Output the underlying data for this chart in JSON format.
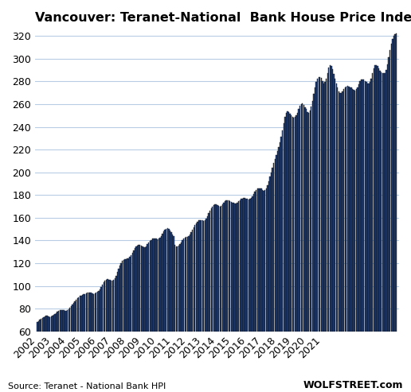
{
  "title": "Vancouver: Teranet-National  Bank House Price Index",
  "source_left": "Source: Teranet - National Bank HPI",
  "source_right": "WOLFSTREET.com",
  "ylim": [
    60,
    325
  ],
  "yticks": [
    60,
    80,
    100,
    120,
    140,
    160,
    180,
    200,
    220,
    240,
    260,
    280,
    300,
    320
  ],
  "bar_color": "#1f4080",
  "bar_edge_color": "#111111",
  "background_color": "#ffffff",
  "grid_color": "#b8cce4",
  "values": [
    68.5,
    69.2,
    70.1,
    71.0,
    71.8,
    72.5,
    73.0,
    73.5,
    73.8,
    73.0,
    72.5,
    72.8,
    73.5,
    74.2,
    75.0,
    76.0,
    77.0,
    78.0,
    78.5,
    78.8,
    79.0,
    78.5,
    78.0,
    78.2,
    78.8,
    79.5,
    80.5,
    82.0,
    83.5,
    85.0,
    86.5,
    87.8,
    89.0,
    90.0,
    91.0,
    91.5,
    92.0,
    92.5,
    93.0,
    93.5,
    93.8,
    94.0,
    94.2,
    94.0,
    93.5,
    93.0,
    93.2,
    93.8,
    94.5,
    95.5,
    97.0,
    99.0,
    101.0,
    103.0,
    104.5,
    105.5,
    106.0,
    105.5,
    105.0,
    104.5,
    104.8,
    105.5,
    107.0,
    109.0,
    112.0,
    115.0,
    118.0,
    120.0,
    122.0,
    123.0,
    123.5,
    123.8,
    124.0,
    124.5,
    125.5,
    127.0,
    129.0,
    131.0,
    133.0,
    134.5,
    135.5,
    136.0,
    136.0,
    135.5,
    134.8,
    134.0,
    134.0,
    135.0,
    136.5,
    138.0,
    139.5,
    140.5,
    141.5,
    142.0,
    142.0,
    141.5,
    141.0,
    141.5,
    142.5,
    144.0,
    146.0,
    148.0,
    149.5,
    150.0,
    150.5,
    150.0,
    149.0,
    147.5,
    145.5,
    143.5,
    136.0,
    134.5,
    135.0,
    135.5,
    137.0,
    138.5,
    140.0,
    141.5,
    142.5,
    143.0,
    143.0,
    143.5,
    145.0,
    147.0,
    149.5,
    151.5,
    153.5,
    155.0,
    156.5,
    157.5,
    158.0,
    158.0,
    157.5,
    157.0,
    157.5,
    159.0,
    161.5,
    164.0,
    166.5,
    168.5,
    170.0,
    171.0,
    171.5,
    171.5,
    171.0,
    170.5,
    170.0,
    170.5,
    171.5,
    173.0,
    174.5,
    175.5,
    175.5,
    175.0,
    174.5,
    174.0,
    173.5,
    173.0,
    172.5,
    172.8,
    173.5,
    174.5,
    175.5,
    176.5,
    177.0,
    177.5,
    177.5,
    177.0,
    176.5,
    176.0,
    176.5,
    177.5,
    179.0,
    181.0,
    183.0,
    184.5,
    185.5,
    186.0,
    186.0,
    185.5,
    184.5,
    184.0,
    184.5,
    186.0,
    188.5,
    192.0,
    196.0,
    200.0,
    204.0,
    208.0,
    212.0,
    215.5,
    219.0,
    222.5,
    226.5,
    231.5,
    237.0,
    243.0,
    248.5,
    252.0,
    253.5,
    253.0,
    251.5,
    250.0,
    248.5,
    248.0,
    248.5,
    250.0,
    252.5,
    255.5,
    258.5,
    260.0,
    260.5,
    259.5,
    257.5,
    255.5,
    253.0,
    252.0,
    254.5,
    258.0,
    263.0,
    269.0,
    275.0,
    279.5,
    282.5,
    284.0,
    284.0,
    283.0,
    280.5,
    278.0,
    279.5,
    282.5,
    287.5,
    292.5,
    294.5,
    293.5,
    290.5,
    286.5,
    282.5,
    278.5,
    274.5,
    271.0,
    269.5,
    270.0,
    271.5,
    273.0,
    274.5,
    275.5,
    276.0,
    275.5,
    275.0,
    274.5,
    273.5,
    272.5,
    272.0,
    273.0,
    275.0,
    277.5,
    280.0,
    281.5,
    282.0,
    281.5,
    280.5,
    279.5,
    278.5,
    278.0,
    279.5,
    282.5,
    287.0,
    291.5,
    294.0,
    294.5,
    293.5,
    291.5,
    289.5,
    288.0,
    287.5,
    287.0,
    287.5,
    290.0,
    295.0,
    301.0,
    307.5,
    313.0,
    317.5,
    320.0,
    321.5,
    322.0
  ],
  "start_year": 2002,
  "x_tick_years": [
    2002,
    2003,
    2004,
    2005,
    2006,
    2007,
    2008,
    2009,
    2010,
    2011,
    2012,
    2013,
    2014,
    2015,
    2016,
    2017,
    2018,
    2019,
    2020,
    2021
  ]
}
